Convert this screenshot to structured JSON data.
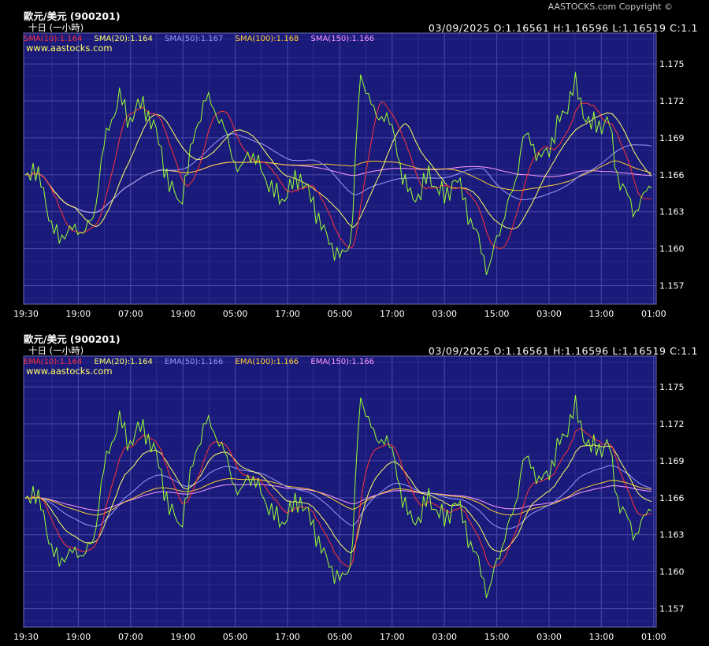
{
  "copyright": "AASTOCKS.com Copyright ©",
  "x_tick_labels": [
    "19:30",
    "19:00",
    "07:00",
    "19:00",
    "05:00",
    "17:00",
    "05:00",
    "17:00",
    "03:00",
    "15:00",
    "03:00",
    "13:00",
    "01:00"
  ],
  "y_tick_labels": [
    "1.175",
    "1.172",
    "1.169",
    "1.166",
    "1.163",
    "1.160",
    "1.157"
  ],
  "colors": {
    "background": "#1a1a7a",
    "grid": "#4848a8",
    "price": "#99ff33",
    "ma10": "#ff3333",
    "ma20": "#ffff66",
    "ma50": "#9999ff",
    "ma100": "#ffcc33",
    "ma150": "#ff99ff"
  },
  "panels": [
    {
      "title": "歐元/美元 (900201)",
      "subtitle": "十日 (一小時)",
      "date": "03/09/2025",
      "open": "O:1.16561",
      "high": "H:1.16596",
      "low": "L:1.16519",
      "close": "C:1.1",
      "source": "www.aastocks.com",
      "legend": [
        {
          "label": "SMA(10):1.164",
          "color": "#ff3333"
        },
        {
          "label": "SMA(20):1.164",
          "color": "#ffff66"
        },
        {
          "label": "SMA(50):1.167",
          "color": "#9999ff"
        },
        {
          "label": "SMA(100):1.168",
          "color": "#ffcc33"
        },
        {
          "label": "SMA(150):1.166",
          "color": "#ff99ff"
        }
      ]
    },
    {
      "title": "歐元/美元 (900201)",
      "subtitle": "十日 (一小時)",
      "date": "03/09/2025",
      "open": "O:1.16561",
      "high": "H:1.16596",
      "low": "L:1.16519",
      "close": "C:1.1",
      "source": "www.aastocks.com",
      "legend": [
        {
          "label": "EMA(10):1.164",
          "color": "#ff3333"
        },
        {
          "label": "EMA(20):1.164",
          "color": "#ffff66"
        },
        {
          "label": "EMA(50):1.166",
          "color": "#9999ff"
        },
        {
          "label": "EMA(100):1.166",
          "color": "#ffcc33"
        },
        {
          "label": "EMA(150):1.166",
          "color": "#ff99ff"
        }
      ]
    }
  ],
  "chart_data": [
    {
      "type": "line",
      "title": "歐元/美元 (900201)",
      "ylim": [
        1.1555,
        1.1775
      ],
      "grid": true,
      "price_anchors": [
        1.1655,
        1.1668,
        1.1648,
        1.1622,
        1.1605,
        1.1618,
        1.1612,
        1.1618,
        1.1622,
        1.1682,
        1.17,
        1.1728,
        1.17,
        1.1718,
        1.1712,
        1.1702,
        1.1672,
        1.165,
        1.1635,
        1.1668,
        1.17,
        1.1722,
        1.1715,
        1.17,
        1.168,
        1.166,
        1.168,
        1.167,
        1.1658,
        1.1645,
        1.164,
        1.165,
        1.166,
        1.1645,
        1.163,
        1.161,
        1.16,
        1.1592,
        1.1608,
        1.1738,
        1.1728,
        1.1702,
        1.1712,
        1.169,
        1.166,
        1.164,
        1.1645,
        1.166,
        1.165,
        1.164,
        1.1658,
        1.1645,
        1.162,
        1.1605,
        1.158,
        1.161,
        1.163,
        1.165,
        1.169,
        1.1688,
        1.1672,
        1.168,
        1.17,
        1.1712,
        1.1735,
        1.1712,
        1.17,
        1.17,
        1.1705,
        1.166,
        1.1645,
        1.163,
        1.164,
        1.1655
      ],
      "series": [
        {
          "name": "SMA(10)",
          "last": 1.164
        },
        {
          "name": "SMA(20)",
          "last": 1.164
        },
        {
          "name": "SMA(50)",
          "last": 1.167
        },
        {
          "name": "SMA(100)",
          "last": 1.168
        },
        {
          "name": "SMA(150)",
          "last": 1.166
        }
      ]
    },
    {
      "type": "line",
      "title": "歐元/美元 (900201)",
      "ylim": [
        1.1555,
        1.1775
      ],
      "grid": true,
      "series": [
        {
          "name": "EMA(10)",
          "last": 1.164
        },
        {
          "name": "EMA(20)",
          "last": 1.164
        },
        {
          "name": "EMA(50)",
          "last": 1.166
        },
        {
          "name": "EMA(100)",
          "last": 1.166
        },
        {
          "name": "EMA(150)",
          "last": 1.166
        }
      ]
    }
  ]
}
